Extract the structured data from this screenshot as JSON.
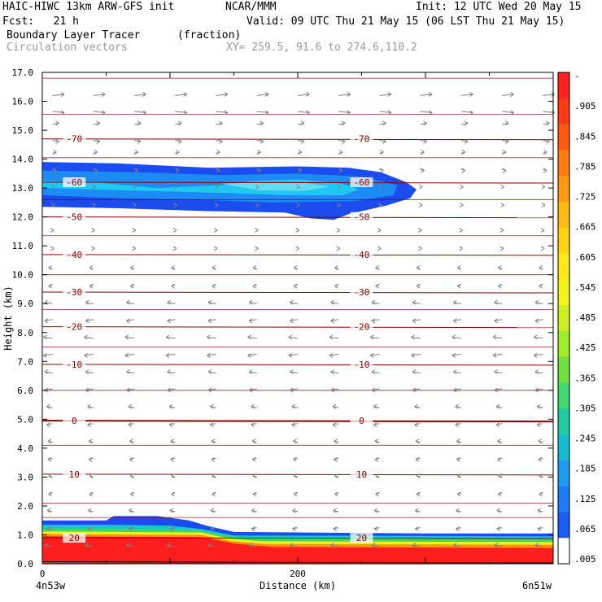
{
  "header": {
    "model": "HAIC-HIWC 13km ARW-GFS init",
    "org": "NCAR/MMM",
    "init": "Init: 12 UTC Wed 20 May 15",
    "fcst": "Fcst:   21 h",
    "valid": "Valid: 09 UTC Thu 21 May 15 (06 LST Thu 21 May 15)",
    "field": "Boundary Layer Tracer",
    "units": "(fraction)",
    "vectors": "Circulation vectors",
    "xy": "XY= 259.5, 91.6 to 274.6,110.2"
  },
  "chart_data": {
    "type": "heatmap",
    "ylabel": "Height (km)",
    "xlabel": "Distance (km)",
    "xlim": [
      0,
      400
    ],
    "ylim": [
      0,
      17
    ],
    "y_ticks": [
      "0.0",
      "1.0",
      "2.0",
      "3.0",
      "4.0",
      "5.0",
      "6.0",
      "7.0",
      "8.0",
      "9.0",
      "10.0",
      "11.0",
      "12.0",
      "13.0",
      "14.0",
      "15.0",
      "16.0",
      "17.0"
    ],
    "x_ticks": [
      {
        "value": 0,
        "label": "0"
      },
      {
        "value": 200,
        "label": "200"
      }
    ],
    "x_end_labels": {
      "left": "4n53w",
      "right": "6n51w"
    },
    "colorbar": {
      "labels": [
        "-",
        ".905",
        ".845",
        ".785",
        ".725",
        ".665",
        ".605",
        ".545",
        ".485",
        ".425",
        ".365",
        ".305",
        ".245",
        ".185",
        ".125",
        ".065",
        ".005"
      ],
      "colors": [
        "#ff2020",
        "#ff3a14",
        "#ff5a10",
        "#ff7a10",
        "#ff9a10",
        "#ffba14",
        "#ffd214",
        "#ffe81a",
        "#f2f41c",
        "#ccf020",
        "#a0ec28",
        "#6ee040",
        "#40d870",
        "#20cca0",
        "#18bcd0",
        "#1c9cf0",
        "#1c7cf8",
        "#1a5cf4",
        "#ffffff"
      ]
    },
    "tracer_layers": [
      {
        "name": "upper_plume_outer",
        "color": "#1a4cf0"
      },
      {
        "name": "upper_plume_mid",
        "color": "#1c8cf4"
      },
      {
        "name": "upper_plume_core",
        "color": "#20c8f0"
      },
      {
        "name": "bl_blue",
        "color": "#1a4cf0"
      },
      {
        "name": "bl_cyan",
        "color": "#18c8c8"
      },
      {
        "name": "bl_green",
        "color": "#40d860"
      },
      {
        "name": "bl_yellow",
        "color": "#f0f020"
      },
      {
        "name": "bl_orange",
        "color": "#ff9010"
      },
      {
        "name": "bl_red",
        "color": "#ff1e1e"
      }
    ],
    "temperature_contours": [
      {
        "label": "-70",
        "height": 14.7
      },
      {
        "label": "-60",
        "height": 13.2
      },
      {
        "label": "-50",
        "height": 12.0
      },
      {
        "label": "-40",
        "height": 10.7
      },
      {
        "label": "-30",
        "height": 9.4
      },
      {
        "label": "-20",
        "height": 8.2
      },
      {
        "label": "-10",
        "height": 6.9
      },
      {
        "label": "0",
        "height": 4.95
      },
      {
        "label": "10",
        "height": 3.1
      },
      {
        "label": "20",
        "height": 0.9
      }
    ],
    "contour_color": "#8b0000",
    "vector_color": "#808080",
    "vector_rows": [
      {
        "height": 16.2,
        "u": 0.9
      },
      {
        "height": 15.2,
        "u": 0.5
      },
      {
        "height": 14.2,
        "u": 0.3
      },
      {
        "height": 13.0,
        "u": 0.15
      },
      {
        "height": 11.5,
        "u": 0.1
      },
      {
        "height": 10.2,
        "u": -0.3
      },
      {
        "height": 9.0,
        "u": -0.6
      },
      {
        "height": 7.8,
        "u": -0.7
      },
      {
        "height": 6.6,
        "u": -0.6
      },
      {
        "height": 5.4,
        "u": -0.45
      },
      {
        "height": 4.2,
        "u": -0.35
      },
      {
        "height": 3.0,
        "u": -0.3
      },
      {
        "height": 1.8,
        "u": -0.4
      },
      {
        "height": 0.6,
        "u": -0.6
      }
    ]
  }
}
